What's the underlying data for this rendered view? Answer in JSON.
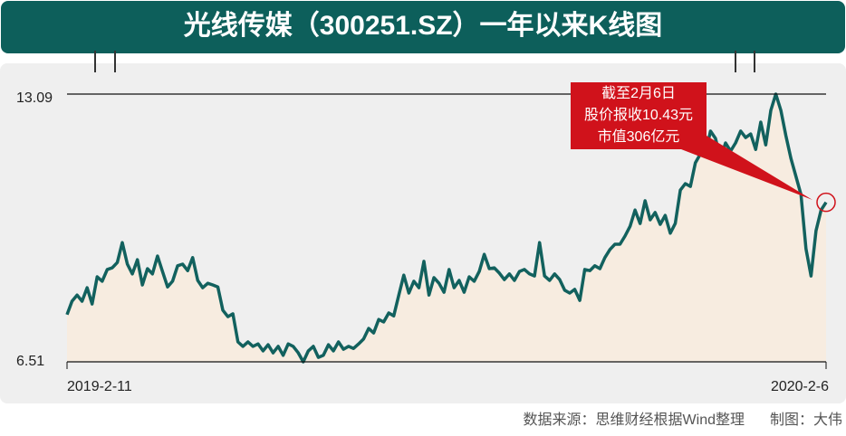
{
  "chart_data": {
    "type": "line",
    "title": "光线传媒（300251.SZ）一年以来K线图",
    "categories": [
      "2019-2-11",
      null,
      null,
      null,
      null,
      null,
      null,
      null,
      null,
      null,
      null,
      null,
      null,
      null,
      null,
      null,
      null,
      null,
      null,
      null,
      null,
      null,
      null,
      null,
      null,
      null,
      null,
      null,
      null,
      null,
      null,
      null,
      null,
      null,
      null,
      null,
      null,
      null,
      null,
      null,
      null,
      null,
      null,
      null,
      null,
      null,
      null,
      null,
      null,
      null,
      null,
      null,
      null,
      null,
      null,
      null,
      null,
      null,
      null,
      null,
      null,
      null,
      null,
      null,
      null,
      null,
      null,
      null,
      null,
      null,
      null,
      null,
      null,
      null,
      null,
      null,
      null,
      null,
      null,
      null,
      null,
      null,
      null,
      null,
      null,
      null,
      null,
      null,
      null,
      null,
      null,
      null,
      null,
      null,
      null,
      null,
      null,
      null,
      null,
      null,
      null,
      null,
      null,
      null,
      null,
      null,
      null,
      null,
      null,
      null,
      null,
      null,
      null,
      null,
      null,
      null,
      null,
      null,
      null,
      null,
      null,
      null,
      null,
      null,
      null,
      null,
      null,
      null,
      null,
      null,
      null,
      null,
      null,
      null,
      null,
      null,
      null,
      null,
      null,
      null,
      null,
      null,
      null,
      null,
      null,
      null,
      null,
      null,
      null,
      null,
      null,
      "2020-2-6"
    ],
    "series": [
      {
        "color": "#12615e",
        "values": [
          7.67,
          8.0,
          8.15,
          8.0,
          8.33,
          7.93,
          8.6,
          8.49,
          8.78,
          8.82,
          8.95,
          9.44,
          8.91,
          8.67,
          9.02,
          8.4,
          8.8,
          8.67,
          9.11,
          8.73,
          8.35,
          8.49,
          8.87,
          8.91,
          8.75,
          9.07,
          8.51,
          8.33,
          8.44,
          8.4,
          8.35,
          7.78,
          7.62,
          7.69,
          7.0,
          6.89,
          7.0,
          6.89,
          6.95,
          6.78,
          6.93,
          6.73,
          6.89,
          6.67,
          6.95,
          6.89,
          6.73,
          6.51,
          6.78,
          6.89,
          6.62,
          6.67,
          6.93,
          6.78,
          7.0,
          6.82,
          6.89,
          6.84,
          6.95,
          7.07,
          7.33,
          7.22,
          7.55,
          7.49,
          7.71,
          7.64,
          8.15,
          8.64,
          8.2,
          8.49,
          8.33,
          8.98,
          8.15,
          8.58,
          8.44,
          8.22,
          8.78,
          8.33,
          8.51,
          8.22,
          8.6,
          8.49,
          8.73,
          9.15,
          8.8,
          8.82,
          8.69,
          8.53,
          8.67,
          8.51,
          8.73,
          8.78,
          8.67,
          8.62,
          9.44,
          8.62,
          8.51,
          8.67,
          8.53,
          8.27,
          8.2,
          8.29,
          8.02,
          8.78,
          8.75,
          8.87,
          8.8,
          9.07,
          9.27,
          9.4,
          9.4,
          9.6,
          9.84,
          10.24,
          9.91,
          10.47,
          10.0,
          10.18,
          9.89,
          10.11,
          9.67,
          9.91,
          10.73,
          10.89,
          10.82,
          11.4,
          11.62,
          11.62,
          12.18,
          12.0,
          11.51,
          11.89,
          11.69,
          11.89,
          12.18,
          12.02,
          12.11,
          11.73,
          12.4,
          11.84,
          12.69,
          13.09,
          12.69,
          12.07,
          11.51,
          11.07,
          10.62,
          9.29,
          8.62,
          9.73,
          10.24,
          10.43
        ]
      }
    ],
    "area_color": "#f7ece0",
    "ylim": [
      6.51,
      13.09
    ],
    "yticks": [
      6.51,
      13.09
    ],
    "grid": true,
    "annotation": [
      "截至2月6日",
      "股价报收10.43元",
      "市值306亿元"
    ],
    "source": "数据来源：思维财经根据Wind整理",
    "credit": "制图：大伟"
  }
}
